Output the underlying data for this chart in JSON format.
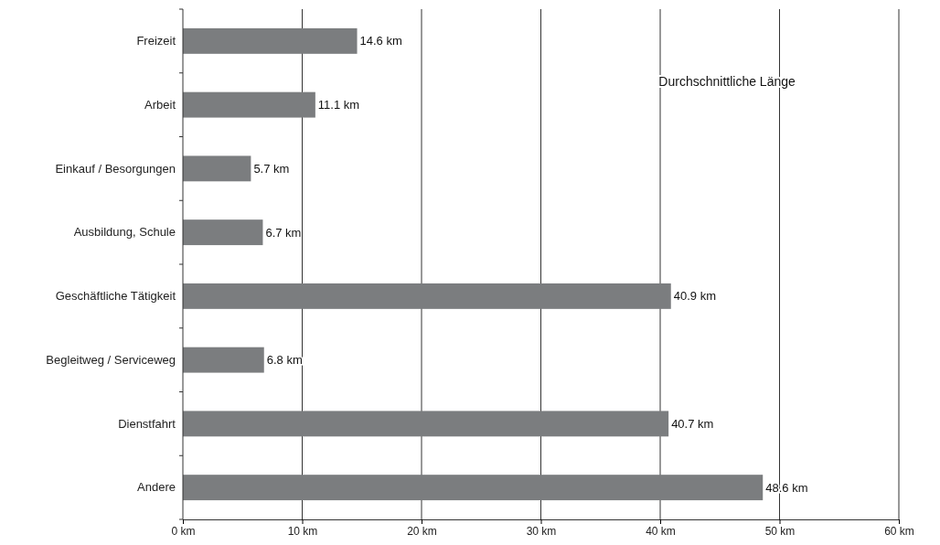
{
  "chart_data": {
    "type": "bar",
    "orientation": "horizontal",
    "categories": [
      "Freizeit",
      "Arbeit",
      "Einkauf / Besorgungen",
      "Ausbildung, Schule",
      "Geschäftliche Tätigkeit",
      "Begleitweg / Serviceweg",
      "Dienstfahrt",
      "Andere"
    ],
    "values": [
      14.6,
      11.1,
      5.7,
      6.7,
      40.9,
      6.8,
      40.7,
      48.6
    ],
    "value_labels": [
      "14.6 km",
      "11.1 km",
      "5.7 km",
      "6.7 km",
      "40.9 km",
      "6.8 km",
      "40.7 km",
      "48.6 km"
    ],
    "color": "#7b7d7f",
    "xlim": [
      0,
      60
    ],
    "xticks": [
      {
        "value": 0,
        "label": "0 km"
      },
      {
        "value": 10,
        "label": "10 km"
      },
      {
        "value": 20,
        "label": "20 km"
      },
      {
        "value": 30,
        "label": "30 km"
      },
      {
        "value": 40,
        "label": "40 km"
      },
      {
        "value": 50,
        "label": "50 km"
      },
      {
        "value": 60,
        "label": "60 km"
      }
    ],
    "grid": "x",
    "annotations": [
      "Durchschnittliche Länge"
    ]
  }
}
